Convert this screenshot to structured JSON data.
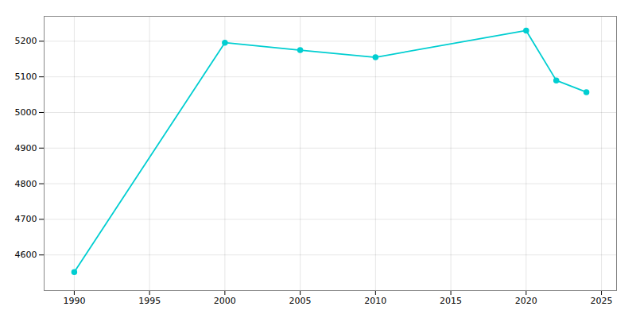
{
  "chart_data": {
    "type": "line",
    "x": [
      1990,
      2000,
      2005,
      2010,
      2020,
      2022,
      2024
    ],
    "values": [
      4552,
      5196,
      5175,
      5155,
      5230,
      5090,
      5057
    ],
    "color": "#00CED1",
    "marker": "circle",
    "xlim": [
      1988,
      2026
    ],
    "ylim": [
      4500,
      5270
    ],
    "xticks": [
      1990,
      1995,
      2000,
      2005,
      2010,
      2015,
      2020,
      2025
    ],
    "yticks": [
      4600,
      4700,
      4800,
      4900,
      5000,
      5100,
      5200
    ],
    "grid": true
  }
}
